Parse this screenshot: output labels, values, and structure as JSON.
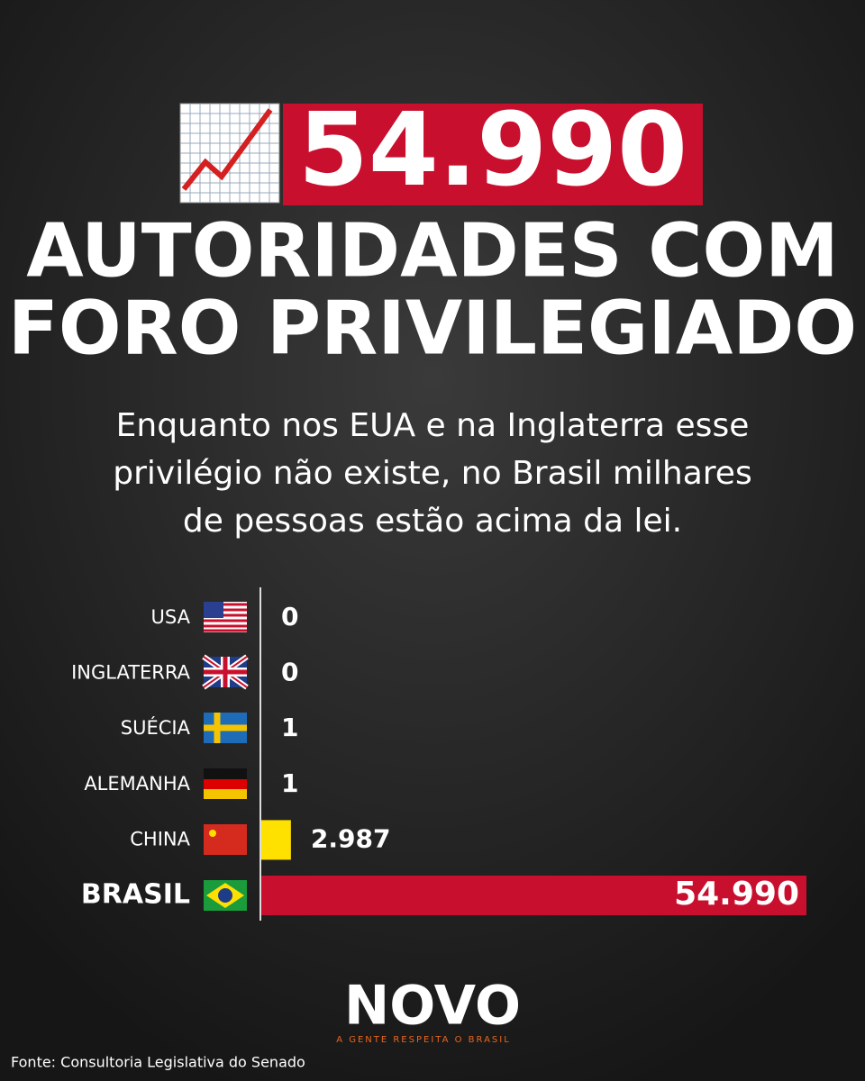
{
  "header": {
    "headline": "54.990",
    "title": [
      "AUTORIDADES COM",
      "FORO PRIVILEGIADO"
    ],
    "subtitle": [
      "Enquanto nos EUA e na Inglaterra esse",
      "privilégio não existe, no Brasil milhares",
      "de pessoas estão acima da lei."
    ]
  },
  "chart_data": {
    "type": "bar",
    "orientation": "horizontal",
    "categories": [
      "USA",
      "INGLATERRA",
      "SUÉCIA",
      "ALEMANHA",
      "CHINA",
      "BRASIL"
    ],
    "values": [
      0,
      0,
      1,
      1,
      2987,
      54990
    ],
    "value_labels": [
      "0",
      "0",
      "1",
      "1",
      "2.987",
      "54.990"
    ],
    "colors": [
      "#2e8b57",
      "#2e8b57",
      "#2e8b57",
      "#2e8b57",
      "#ffe100",
      "#c8102e"
    ]
  },
  "footer": {
    "logo": "NOVO",
    "tagline": "A GENTE RESPEITA O BRASIL",
    "source": "Fonte: Consultoria Legislativa do Senado"
  }
}
